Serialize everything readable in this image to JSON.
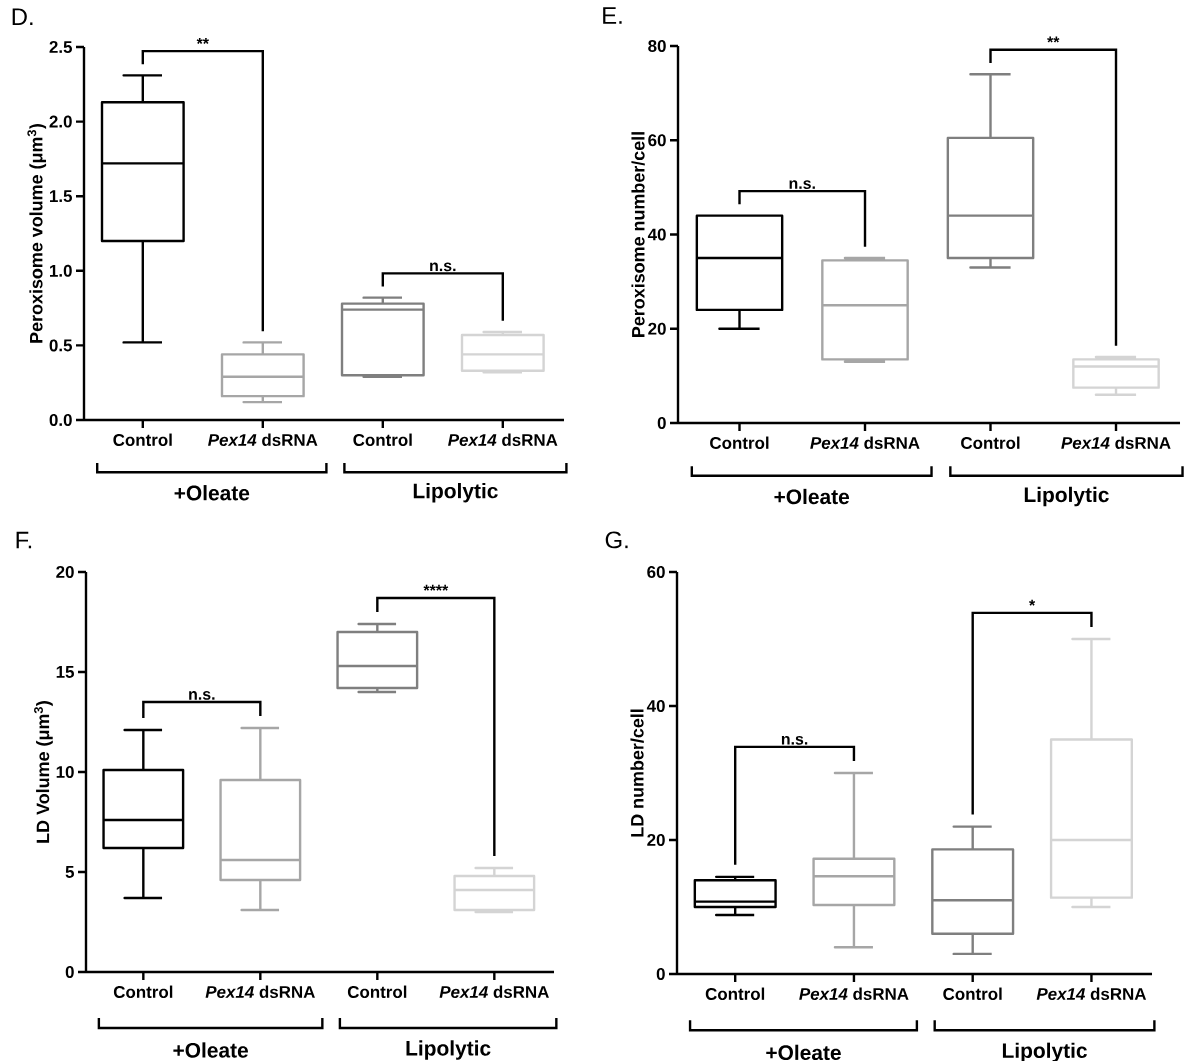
{
  "chart_data": [
    {
      "type": "box",
      "title": "D.",
      "ylabel": "Peroxisome volume (μm$^{3}$)",
      "categories": [
        "Control",
        "*Pex14* dsRNA",
        "Control",
        "*Pex14* dsRNA"
      ],
      "colors": [
        "#000000",
        "#a6a6a6",
        "#7f7f7f",
        "#d4d4d4"
      ],
      "ylim": [
        0,
        2.5
      ],
      "yticks": [
        {
          "value": 0,
          "label": "0.0"
        },
        {
          "value": 0.5,
          "label": "0.5"
        },
        {
          "value": 1,
          "label": "1.0"
        },
        {
          "value": 1.5,
          "label": "1.5"
        },
        {
          "value": 2,
          "label": "2.0"
        },
        {
          "value": 2.5,
          "label": "2.5"
        }
      ],
      "boxes": [
        {
          "low": 0.52,
          "q1": 1.2,
          "median": 1.72,
          "q3": 2.13,
          "high": 2.31
        },
        {
          "low": 0.12,
          "q1": 0.16,
          "median": 0.29,
          "q3": 0.44,
          "high": 0.52
        },
        {
          "low": 0.29,
          "q1": 0.3,
          "median": 0.74,
          "q3": 0.78,
          "high": 0.82
        },
        {
          "low": 0.32,
          "q1": 0.33,
          "median": 0.44,
          "q3": 0.57,
          "high": 0.59
        }
      ],
      "annotations": [
        "**",
        "n.s.",
        "+Oleate",
        "Lipolytic"
      ]
    },
    {
      "type": "box",
      "title": "E.",
      "ylabel": "Peroxisome number/cell",
      "categories": [
        "Control",
        "*Pex14* dsRNA",
        "Control",
        "*Pex14* dsRNA"
      ],
      "colors": [
        "#000000",
        "#a6a6a6",
        "#7f7f7f",
        "#d4d4d4"
      ],
      "ylim": [
        0,
        80
      ],
      "yticks": [
        0,
        20,
        40,
        60,
        80
      ],
      "boxes": [
        {
          "low": 20,
          "q1": 24,
          "median": 35,
          "q3": 44,
          "high": 44
        },
        {
          "low": 13,
          "q1": 13.5,
          "median": 25,
          "q3": 34.5,
          "high": 35
        },
        {
          "low": 33,
          "q1": 35,
          "median": 44,
          "q3": 60.5,
          "high": 74
        },
        {
          "low": 6,
          "q1": 7.5,
          "median": 12,
          "q3": 13.5,
          "high": 14
        }
      ],
      "annotations": [
        "n.s.",
        "**",
        "+Oleate",
        "Lipolytic"
      ]
    },
    {
      "type": "box",
      "title": "F.",
      "ylabel": "LD Volume (μm$^{3}$)",
      "categories": [
        "Control",
        "*Pex14* dsRNA",
        "Control",
        "*Pex14* dsRNA"
      ],
      "colors": [
        "#000000",
        "#a6a6a6",
        "#7f7f7f",
        "#d4d4d4"
      ],
      "ylim": [
        0,
        20
      ],
      "yticks": [
        0,
        5,
        10,
        15,
        20
      ],
      "boxes": [
        {
          "low": 3.7,
          "q1": 6.2,
          "median": 7.6,
          "q3": 10.1,
          "high": 12.1
        },
        {
          "low": 3.1,
          "q1": 4.6,
          "median": 5.6,
          "q3": 9.6,
          "high": 12.2
        },
        {
          "low": 14,
          "q1": 14.2,
          "median": 15.3,
          "q3": 17,
          "high": 17.4
        },
        {
          "low": 3,
          "q1": 3.1,
          "median": 4.1,
          "q3": 4.8,
          "high": 5.2
        }
      ],
      "annotations": [
        "n.s.",
        "****",
        "+Oleate",
        "Lipolytic"
      ]
    },
    {
      "type": "box",
      "title": "G.",
      "ylabel": "LD number/cell",
      "categories": [
        "Control",
        "*Pex14* dsRNA",
        "Control",
        "*Pex14* dsRNA"
      ],
      "colors": [
        "#000000",
        "#a6a6a6",
        "#7f7f7f",
        "#d4d4d4"
      ],
      "ylim": [
        0,
        60
      ],
      "yticks": [
        0,
        20,
        40,
        60
      ],
      "boxes": [
        {
          "low": 8.8,
          "q1": 10,
          "median": 10.8,
          "q3": 14,
          "high": 14.5
        },
        {
          "low": 4,
          "q1": 10.3,
          "median": 14.6,
          "q3": 17.2,
          "high": 30
        },
        {
          "low": 3,
          "q1": 6,
          "median": 11,
          "q3": 18.6,
          "high": 22
        },
        {
          "low": 10,
          "q1": 11.4,
          "median": 20,
          "q3": 35,
          "high": 50
        }
      ],
      "annotations": [
        "n.s.",
        "*",
        "+Oleate",
        "Lipolytic"
      ]
    }
  ]
}
